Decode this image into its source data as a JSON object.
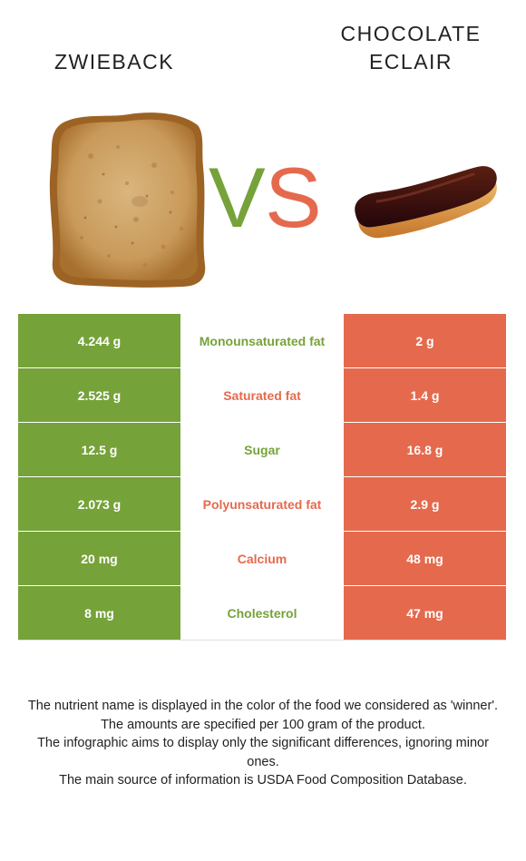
{
  "foods": {
    "left": {
      "name": "ZWIEBACK",
      "color": "#76a23a"
    },
    "right": {
      "name_line1": "CHOCOLATE",
      "name_line2": "ECLAIR",
      "color": "#e56a4d"
    }
  },
  "versus": {
    "v": "V",
    "s": "S"
  },
  "rows": [
    {
      "left": "4.244 g",
      "nutrient": "Monounsaturated fat",
      "winner": "left",
      "right": "2 g"
    },
    {
      "left": "2.525 g",
      "nutrient": "Saturated fat",
      "winner": "right",
      "right": "1.4 g"
    },
    {
      "left": "12.5 g",
      "nutrient": "Sugar",
      "winner": "left",
      "right": "16.8 g"
    },
    {
      "left": "2.073 g",
      "nutrient": "Polyunsaturated fat",
      "winner": "right",
      "right": "2.9 g"
    },
    {
      "left": "20 mg",
      "nutrient": "Calcium",
      "winner": "right",
      "right": "48 mg"
    },
    {
      "left": "8 mg",
      "nutrient": "Cholesterol",
      "winner": "left",
      "right": "47 mg"
    }
  ],
  "notes": [
    "The nutrient name is displayed in the color of the food we considered as 'winner'.",
    "The amounts are specified per 100 gram of the product.",
    "The infographic aims to display only the significant differences, ignoring minor ones.",
    "The main source of information is USDA Food Composition Database."
  ]
}
